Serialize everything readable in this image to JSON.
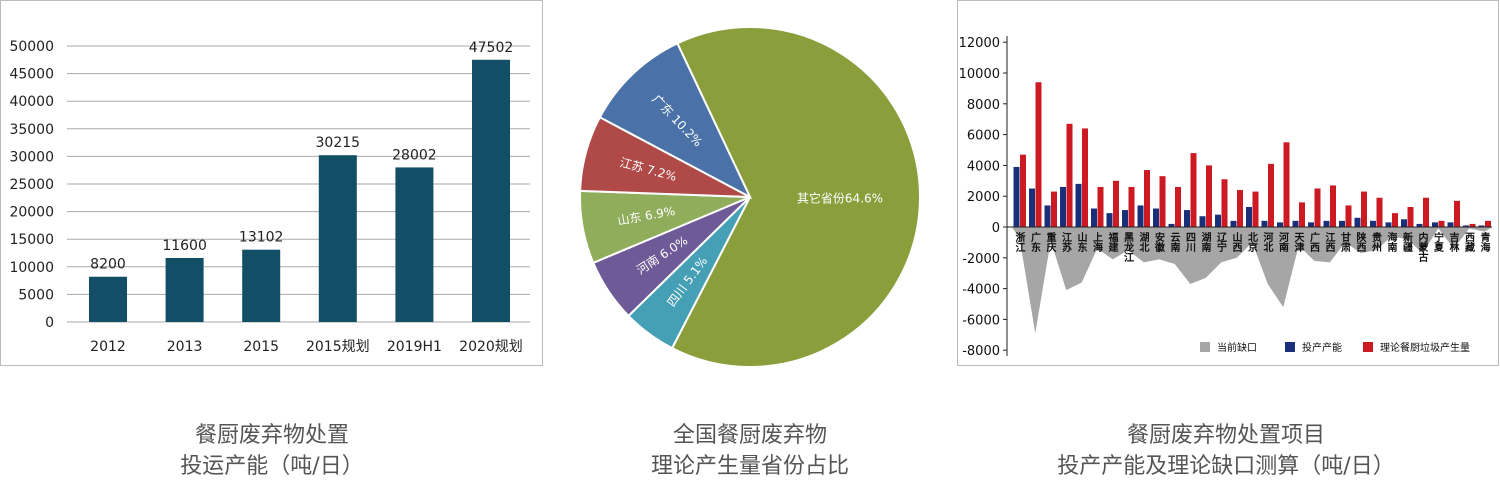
{
  "chart_data": [
    {
      "type": "bar",
      "title": "餐厨废弃物处置投运产能（吨/日）",
      "caption_lines": [
        "餐厨废弃物处置",
        "投运产能（吨/日）"
      ],
      "categories": [
        "2012",
        "2013",
        "2015",
        "2015规划",
        "2019H1",
        "2020规划"
      ],
      "values": [
        8200,
        11600,
        13102,
        30215,
        28002,
        47502
      ],
      "data_labels": [
        "8200",
        "11600",
        "13102",
        "30215",
        "28002",
        "47502"
      ],
      "yticks": [
        0,
        5000,
        10000,
        15000,
        20000,
        25000,
        30000,
        35000,
        40000,
        45000,
        50000
      ],
      "ylim": [
        0,
        50000
      ],
      "grid": true,
      "color": "#124e66"
    },
    {
      "type": "pie",
      "title": "全国餐厨废弃物理论产生量省份占比",
      "caption_lines": [
        "全国餐厨废弃物",
        "理论产生量省份占比"
      ],
      "slices": [
        {
          "label": "其它省份",
          "value": 64.6,
          "text": "其它省份64.6%",
          "color": "#8a9e3c"
        },
        {
          "label": "四川",
          "value": 5.1,
          "text": "四川 5.1%",
          "color": "#45a0b5"
        },
        {
          "label": "河南",
          "value": 6.0,
          "text": "河南 6.0%",
          "color": "#6e5a96"
        },
        {
          "label": "山东",
          "value": 6.9,
          "text": "山东 6.9%",
          "color": "#8fad5a"
        },
        {
          "label": "江苏",
          "value": 7.2,
          "text": "江苏 7.2%",
          "color": "#b04a48"
        },
        {
          "label": "广东",
          "value": 10.2,
          "text": "广东 10.2%",
          "color": "#4a72a8"
        }
      ]
    },
    {
      "type": "bar",
      "title": "餐厨废弃物处置项目投产产能及理论缺口测算（吨/日）",
      "caption_lines": [
        "餐厨废弃物处置项目",
        "投产产能及理论缺口测算（吨/日）"
      ],
      "categories": [
        "浙江",
        "广东",
        "重庆",
        "江苏",
        "山东",
        "上海",
        "福建",
        "黑龙江",
        "湖北",
        "安徽",
        "云南",
        "四川",
        "湖南",
        "辽宁",
        "山西",
        "北京",
        "河北",
        "河南",
        "天津",
        "广西",
        "江西",
        "甘肃",
        "陕西",
        "贵州",
        "海南",
        "新疆",
        "内蒙古",
        "宁夏",
        "吉林",
        "西藏",
        "青海"
      ],
      "series": [
        {
          "name": "当前缺口",
          "type": "area",
          "color": "#a6a6a6",
          "values": [
            -800,
            -6900,
            -900,
            -4100,
            -3600,
            -1400,
            -2100,
            -1500,
            -2300,
            -2100,
            -2400,
            -3700,
            -3300,
            -2300,
            -2000,
            -1000,
            -3700,
            -5200,
            -1200,
            -2200,
            -2300,
            -1000,
            -1700,
            -1500,
            -600,
            -800,
            -1700,
            -100,
            -1400,
            -100,
            -300
          ]
        },
        {
          "name": "投产产能",
          "type": "bar",
          "color": "#1a2f7a",
          "values": [
            3900,
            2500,
            1400,
            2600,
            2800,
            1200,
            900,
            1100,
            1400,
            1200,
            200,
            1100,
            700,
            800,
            400,
            1300,
            400,
            300,
            400,
            300,
            400,
            400,
            600,
            400,
            300,
            500,
            200,
            300,
            300,
            100,
            100
          ]
        },
        {
          "name": "理论餐厨垃圾产生量",
          "type": "bar",
          "color": "#cc1a22",
          "values": [
            4700,
            9400,
            2300,
            6700,
            6400,
            2600,
            3000,
            2600,
            3700,
            3300,
            2600,
            4800,
            4000,
            3100,
            2400,
            2300,
            4100,
            5500,
            1600,
            2500,
            2700,
            1400,
            2300,
            1900,
            900,
            1300,
            1900,
            400,
            1700,
            200,
            400
          ]
        }
      ],
      "yticks": [
        -8000,
        -6000,
        -4000,
        -2000,
        0,
        2000,
        4000,
        6000,
        8000,
        10000,
        12000
      ],
      "ylim": [
        -8000,
        12000
      ],
      "legend": "bottom-right"
    }
  ]
}
